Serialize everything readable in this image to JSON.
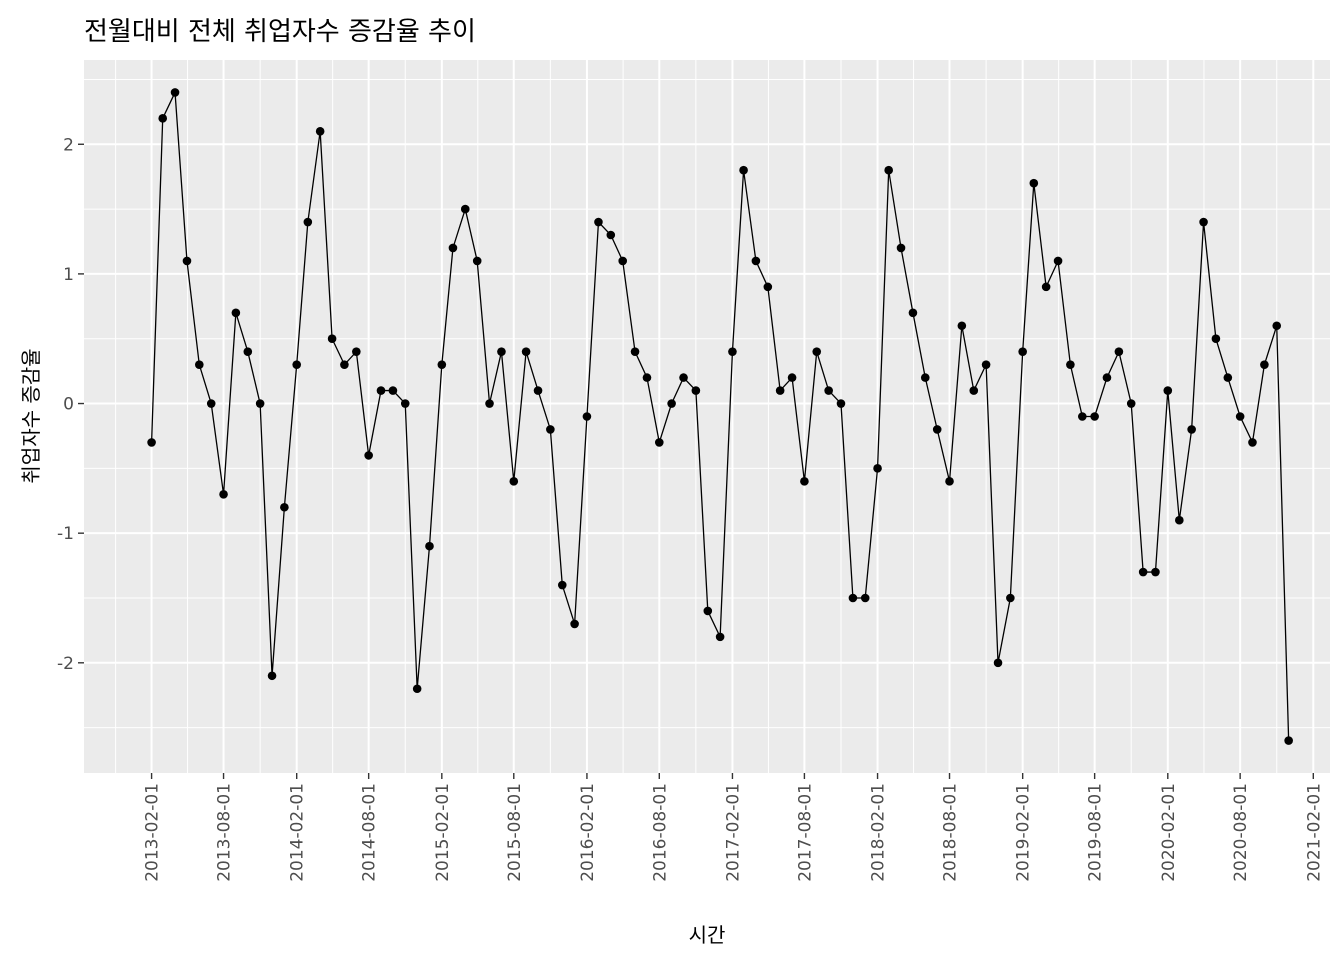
{
  "chart_data": {
    "type": "line",
    "title": "전월대비 전체 취업자수 증감율 추이",
    "xlabel": "시간",
    "ylabel": "취업자수 증감율",
    "x_tick_labels": [
      "2013-02-01",
      "2013-08-01",
      "2014-02-01",
      "2014-08-01",
      "2015-02-01",
      "2015-08-01",
      "2016-02-01",
      "2016-08-01",
      "2017-02-01",
      "2017-08-01",
      "2018-02-01",
      "2018-08-01",
      "2019-02-01",
      "2019-08-01",
      "2020-02-01",
      "2020-08-01",
      "2021-02-01"
    ],
    "y_tick_labels": [
      "-2",
      "-1",
      "0",
      "1",
      "2"
    ],
    "y_ticks": [
      -2,
      -1,
      0,
      1,
      2
    ],
    "xlim": [
      "2012-08-15",
      "2021-03-15"
    ],
    "ylim": [
      -2.85,
      2.65
    ],
    "grid": true,
    "background": "#ebebeb",
    "line_color": "#000000",
    "point_color": "#000000",
    "start_month": "2013-02-01",
    "values": [
      -0.3,
      2.2,
      2.4,
      1.1,
      0.3,
      0.0,
      -0.7,
      0.7,
      0.4,
      0.0,
      -2.1,
      -0.8,
      0.3,
      1.4,
      2.1,
      0.5,
      0.3,
      0.4,
      -0.4,
      0.1,
      0.1,
      0.0,
      -2.2,
      -1.1,
      0.3,
      1.2,
      1.5,
      1.1,
      0.0,
      0.4,
      -0.6,
      0.4,
      0.1,
      -0.2,
      -1.4,
      -1.7,
      -0.1,
      1.4,
      1.3,
      1.1,
      0.4,
      0.2,
      -0.3,
      0.0,
      0.2,
      0.1,
      -1.6,
      -1.8,
      0.4,
      1.8,
      1.1,
      0.9,
      0.1,
      0.2,
      -0.6,
      0.4,
      0.1,
      0.0,
      -1.5,
      -1.5,
      -0.5,
      1.8,
      1.2,
      0.7,
      0.2,
      -0.2,
      -0.6,
      0.6,
      0.1,
      0.3,
      -2.0,
      -1.5,
      0.4,
      1.7,
      0.9,
      1.1,
      0.3,
      -0.1,
      -0.1,
      0.2,
      0.4,
      0.0,
      -1.3,
      -1.3,
      0.1,
      -0.9,
      -0.2,
      1.4,
      0.5,
      0.2,
      -0.1,
      -0.3,
      0.3,
      0.6,
      -2.6
    ]
  }
}
